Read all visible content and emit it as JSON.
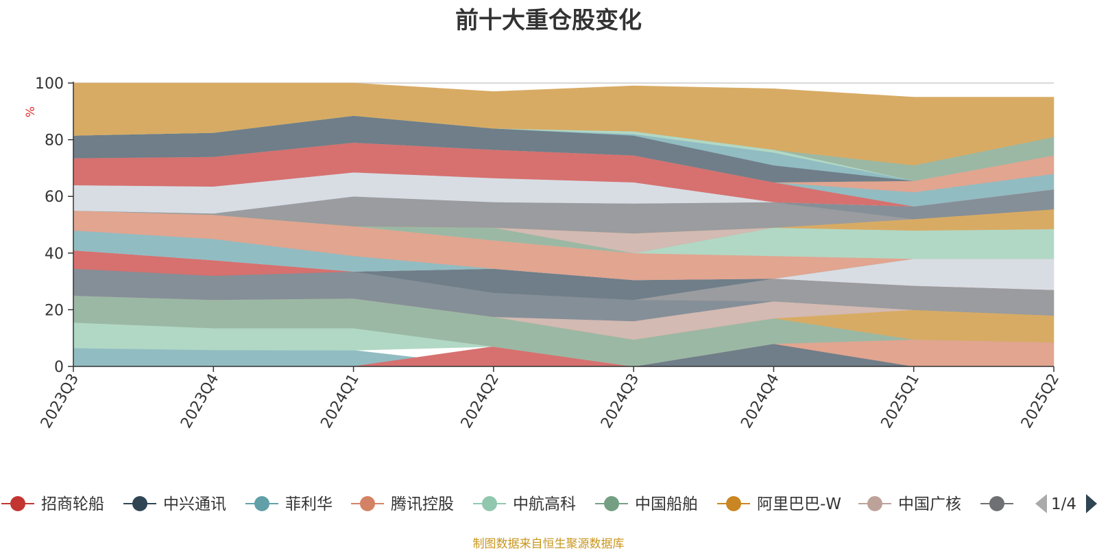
{
  "chart_data": {
    "type": "area",
    "title": "前十大重仓股变化",
    "ylabel": "%",
    "xlabel": "",
    "ylim": [
      0,
      100
    ],
    "yticks": [
      0,
      20,
      40,
      60,
      80,
      100
    ],
    "grid": true,
    "categories": [
      "2023Q3",
      "2023Q4",
      "2024Q1",
      "2024Q2",
      "2024Q3",
      "2024Q4",
      "2025Q1",
      "2025Q2"
    ],
    "bands": [
      {
        "color": "#91bcc2",
        "values": [
          [
            0,
            6.5
          ],
          [
            0,
            5.8
          ],
          [
            0,
            5.7
          ],
          [
            0,
            0
          ],
          [
            0,
            0
          ],
          [
            0,
            0
          ],
          [
            0,
            0
          ],
          [
            0,
            0
          ]
        ]
      },
      {
        "color": "#d6716f",
        "values": [
          [
            0,
            0
          ],
          [
            0,
            0
          ],
          [
            0,
            0
          ],
          [
            0,
            7
          ],
          [
            0,
            0
          ],
          [
            0,
            0
          ],
          [
            0,
            0
          ],
          [
            0,
            0
          ]
        ]
      },
      {
        "color": "#6f7e89",
        "values": [
          [
            0,
            0
          ],
          [
            0,
            0
          ],
          [
            0,
            0
          ],
          [
            0,
            0
          ],
          [
            0,
            0
          ],
          [
            0,
            8
          ],
          [
            0,
            0
          ],
          [
            0,
            0
          ]
        ]
      },
      {
        "color": "#e1a590",
        "values": [
          [
            0,
            0
          ],
          [
            0,
            0
          ],
          [
            0,
            0
          ],
          [
            0,
            0
          ],
          [
            0,
            0
          ],
          [
            8,
            8
          ],
          [
            0,
            9.5
          ],
          [
            0,
            8.5
          ]
        ]
      },
      {
        "color": "#b1d8c5",
        "values": [
          [
            6.5,
            15.5
          ],
          [
            5.8,
            13.5
          ],
          [
            5.7,
            13.5
          ],
          [
            7,
            7
          ],
          [
            0,
            0
          ],
          [
            0,
            0
          ],
          [
            0,
            0
          ],
          [
            0,
            0
          ]
        ]
      },
      {
        "color": "#9bb8a4",
        "values": [
          [
            15.5,
            25
          ],
          [
            13.5,
            23.5
          ],
          [
            13.5,
            24
          ],
          [
            7,
            17.5
          ],
          [
            0,
            9.5
          ],
          [
            8,
            17
          ],
          [
            9.5,
            9.5
          ],
          [
            8.5,
            8.5
          ]
        ]
      },
      {
        "color": "#d8ab64",
        "values": [
          [
            25,
            25
          ],
          [
            23.5,
            23.5
          ],
          [
            24,
            24
          ],
          [
            17.5,
            17.5
          ],
          [
            9.5,
            9.5
          ],
          [
            17,
            17
          ],
          [
            9.5,
            20
          ],
          [
            8.5,
            18
          ]
        ]
      },
      {
        "color": "#d3bab2",
        "values": [
          [
            25,
            25
          ],
          [
            23.5,
            23.5
          ],
          [
            24,
            24
          ],
          [
            17.5,
            17.5
          ],
          [
            9.5,
            16
          ],
          [
            17,
            23
          ],
          [
            20,
            20
          ],
          [
            18,
            18
          ]
        ]
      },
      {
        "color": "#858f98",
        "values": [
          [
            25,
            34.5
          ],
          [
            23.5,
            32
          ],
          [
            24,
            33.5
          ],
          [
            17.5,
            26
          ],
          [
            16,
            23.5
          ],
          [
            23,
            23
          ],
          [
            20,
            20
          ],
          [
            18,
            18
          ]
        ]
      },
      {
        "color": "#9a9c9f",
        "values": [
          [
            34.5,
            34.5
          ],
          [
            32,
            32
          ],
          [
            33.5,
            33.5
          ],
          [
            26,
            26
          ],
          [
            23.5,
            23.5
          ],
          [
            23,
            31
          ],
          [
            20,
            28.5
          ],
          [
            18,
            27
          ]
        ]
      },
      {
        "color": "#6f7e89",
        "values": [
          [
            34.5,
            34.5
          ],
          [
            32,
            32
          ],
          [
            33.5,
            33.5
          ],
          [
            26,
            34.5
          ],
          [
            23.5,
            30.5
          ],
          [
            31,
            31
          ],
          [
            28.5,
            28.5
          ],
          [
            27,
            27
          ]
        ]
      },
      {
        "color": "#d6716f",
        "values": [
          [
            34.5,
            41
          ],
          [
            32,
            37.5
          ],
          [
            33.5,
            33.5
          ],
          [
            34.5,
            34.5
          ],
          [
            30.5,
            30.5
          ],
          [
            31,
            31
          ],
          [
            28.5,
            28.5
          ],
          [
            27,
            27
          ]
        ]
      },
      {
        "color": "#d8dde4",
        "values": [
          [
            41,
            41
          ],
          [
            37.5,
            37.5
          ],
          [
            33.5,
            33.5
          ],
          [
            34.5,
            34.5
          ],
          [
            30.5,
            30.5
          ],
          [
            31,
            31
          ],
          [
            28.5,
            38
          ],
          [
            27,
            38
          ]
        ]
      },
      {
        "color": "#91bcc2",
        "values": [
          [
            41,
            48
          ],
          [
            37.5,
            45
          ],
          [
            33.5,
            39
          ],
          [
            34.5,
            34.5
          ],
          [
            30.5,
            30.5
          ],
          [
            31,
            31
          ],
          [
            38,
            38
          ],
          [
            38,
            38
          ]
        ]
      },
      {
        "color": "#e1a590",
        "values": [
          [
            48,
            55
          ],
          [
            45,
            53.5
          ],
          [
            39,
            49.5
          ],
          [
            34.5,
            44.5
          ],
          [
            30.5,
            40
          ],
          [
            31,
            39
          ],
          [
            38,
            38
          ],
          [
            38,
            38
          ]
        ]
      },
      {
        "color": "#b1d8c5",
        "values": [
          [
            55,
            55
          ],
          [
            53.5,
            53.5
          ],
          [
            49.5,
            49.5
          ],
          [
            44.5,
            44.5
          ],
          [
            40,
            40
          ],
          [
            39,
            49
          ],
          [
            38,
            48
          ],
          [
            38,
            48.5
          ]
        ]
      },
      {
        "color": "#9bb8a4",
        "values": [
          [
            55,
            55
          ],
          [
            53.5,
            53.5
          ],
          [
            49.5,
            49.5
          ],
          [
            44.5,
            49
          ],
          [
            40,
            40
          ],
          [
            49,
            49
          ],
          [
            48,
            48
          ],
          [
            48.5,
            48.5
          ]
        ]
      },
      {
        "color": "#d3bab2",
        "values": [
          [
            55,
            55
          ],
          [
            53.5,
            53.5
          ],
          [
            49.5,
            49.5
          ],
          [
            49,
            49
          ],
          [
            40,
            47
          ],
          [
            49,
            49
          ],
          [
            48,
            48
          ],
          [
            48.5,
            48.5
          ]
        ]
      },
      {
        "color": "#d8ab64",
        "values": [
          [
            55,
            55
          ],
          [
            53.5,
            53.5
          ],
          [
            49.5,
            49.5
          ],
          [
            49,
            49
          ],
          [
            47,
            47
          ],
          [
            49,
            49
          ],
          [
            48,
            52
          ],
          [
            48.5,
            55.5
          ]
        ]
      },
      {
        "color": "#9a9c9f",
        "values": [
          [
            55,
            55
          ],
          [
            53.5,
            54
          ],
          [
            49.5,
            60
          ],
          [
            49,
            58
          ],
          [
            47,
            57.5
          ],
          [
            49,
            58
          ],
          [
            52,
            52
          ],
          [
            55.5,
            55.5
          ]
        ]
      },
      {
        "color": "#858f98",
        "values": [
          [
            55,
            55
          ],
          [
            54,
            54
          ],
          [
            60,
            60
          ],
          [
            58,
            58
          ],
          [
            57.5,
            57.5
          ],
          [
            58,
            58
          ],
          [
            52,
            56.5
          ],
          [
            55.5,
            62.5
          ]
        ]
      },
      {
        "color": "#d8dde4",
        "values": [
          [
            55,
            64
          ],
          [
            54,
            63.5
          ],
          [
            60,
            68.5
          ],
          [
            58,
            66.5
          ],
          [
            57.5,
            65
          ],
          [
            58,
            58
          ],
          [
            56.5,
            56.5
          ],
          [
            62.5,
            62.5
          ]
        ]
      },
      {
        "color": "#d6716f",
        "values": [
          [
            64,
            73.5
          ],
          [
            63.5,
            74
          ],
          [
            68.5,
            79
          ],
          [
            66.5,
            76.5
          ],
          [
            65,
            74.5
          ],
          [
            58,
            65
          ],
          [
            56.5,
            56.5
          ],
          [
            62.5,
            62.5
          ]
        ]
      },
      {
        "color": "#91bcc2",
        "values": [
          [
            73.5,
            73.5
          ],
          [
            74,
            74
          ],
          [
            79,
            79
          ],
          [
            76.5,
            76.5
          ],
          [
            74.5,
            74.5
          ],
          [
            65,
            65
          ],
          [
            56.5,
            61.5
          ],
          [
            62.5,
            68
          ]
        ]
      },
      {
        "color": "#e1a590",
        "values": [
          [
            73.5,
            73.5
          ],
          [
            74,
            74
          ],
          [
            79,
            79
          ],
          [
            76.5,
            76.5
          ],
          [
            74.5,
            74.5
          ],
          [
            65,
            65
          ],
          [
            61.5,
            65.5
          ],
          [
            68,
            74.5
          ]
        ]
      },
      {
        "color": "#6f7e89",
        "values": [
          [
            73.5,
            81.5
          ],
          [
            74,
            82.5
          ],
          [
            79,
            88.5
          ],
          [
            76.5,
            84
          ],
          [
            74.5,
            81.5
          ],
          [
            65,
            71
          ],
          [
            65.5,
            65.5
          ],
          [
            74.5,
            74.5
          ]
        ]
      },
      {
        "color": "#91bcc2",
        "values": [
          [
            81.5,
            81.5
          ],
          [
            82.5,
            82.5
          ],
          [
            88.5,
            88.5
          ],
          [
            84,
            84
          ],
          [
            81.5,
            82
          ],
          [
            71,
            75.5
          ],
          [
            65.5,
            65.5
          ],
          [
            74.5,
            74.5
          ]
        ]
      },
      {
        "color": "#b1d8c5",
        "values": [
          [
            81.5,
            81.5
          ],
          [
            82.5,
            82.5
          ],
          [
            88.5,
            88.5
          ],
          [
            84,
            84
          ],
          [
            82,
            83
          ],
          [
            75.5,
            76.5
          ],
          [
            65.5,
            65.5
          ],
          [
            74.5,
            74.5
          ]
        ]
      },
      {
        "color": "#9bb8a4",
        "values": [
          [
            81.5,
            81.5
          ],
          [
            82.5,
            82.5
          ],
          [
            88.5,
            88.5
          ],
          [
            84,
            84
          ],
          [
            83,
            83
          ],
          [
            76.5,
            76.5
          ],
          [
            65.5,
            71
          ],
          [
            74.5,
            81
          ]
        ]
      },
      {
        "color": "#d8ab64",
        "values": [
          [
            81.5,
            100
          ],
          [
            82.5,
            100
          ],
          [
            88.5,
            100
          ],
          [
            84,
            97
          ],
          [
            83,
            99
          ],
          [
            76.5,
            98
          ],
          [
            71,
            95
          ],
          [
            81,
            95
          ]
        ]
      }
    ],
    "legend": {
      "position": "bottom",
      "page": "1/4",
      "items": [
        {
          "name": "招商轮船",
          "color": "#c23531"
        },
        {
          "name": "中兴通讯",
          "color": "#2f4554"
        },
        {
          "name": "菲利华",
          "color": "#61a0a8"
        },
        {
          "name": "腾讯控股",
          "color": "#d48265"
        },
        {
          "name": "中航高科",
          "color": "#91c7ae"
        },
        {
          "name": "中国船舶",
          "color": "#749f83"
        },
        {
          "name": "阿里巴巴-W",
          "color": "#ca8622"
        },
        {
          "name": "中国广核",
          "color": "#bda29a"
        },
        {
          "name": "",
          "color": "#6e7074"
        }
      ]
    }
  },
  "source_note": "制图数据来自恒生聚源数据库"
}
